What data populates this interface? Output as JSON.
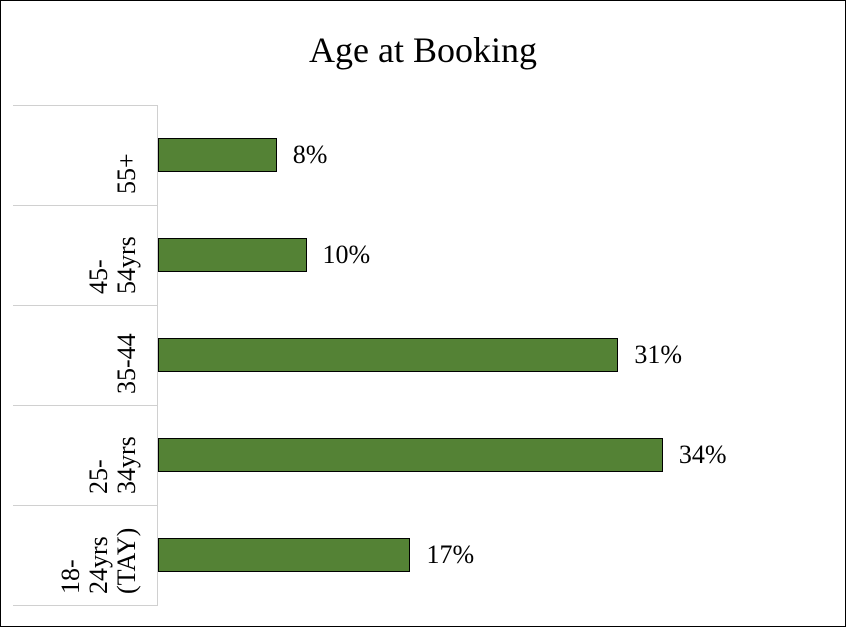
{
  "chart_data": {
    "type": "bar",
    "orientation": "horizontal",
    "title": "Age at Booking",
    "categories": [
      "55+",
      "45- 54yrs",
      "35-44",
      "25- 34yrs",
      "18- 24yrs (TAY)"
    ],
    "values": [
      8,
      10,
      31,
      34,
      17
    ],
    "value_labels": [
      "8%",
      "10%",
      "31%",
      "34%",
      "17%"
    ],
    "color": "#548235"
  }
}
